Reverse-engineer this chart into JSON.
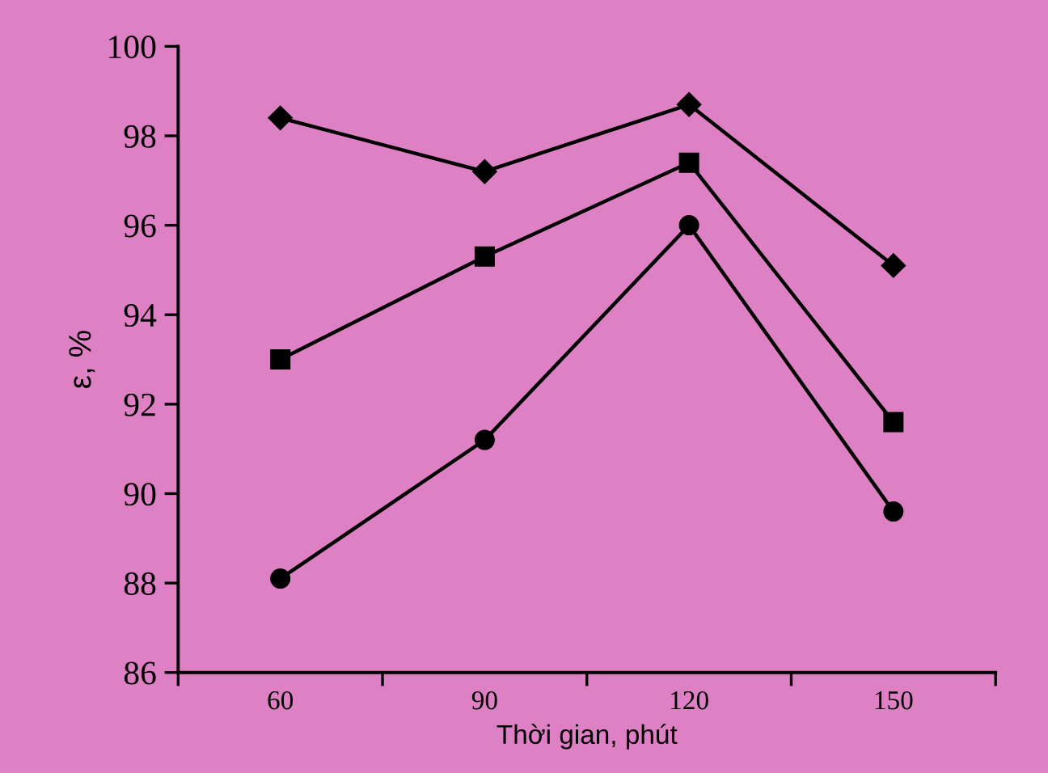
{
  "chart_data": {
    "type": "line",
    "xlabel": "Thời gian, phút",
    "ylabel": "ε, %",
    "categories": [
      "60",
      "90",
      "120",
      "150"
    ],
    "ylim": [
      86,
      100
    ],
    "yticks": [
      86,
      88,
      90,
      92,
      94,
      96,
      98,
      100
    ],
    "grid": false,
    "line_style": "solid",
    "series": [
      {
        "color": "#000000",
        "marker": "diamond",
        "values": [
          98.4,
          97.2,
          98.7,
          95.1
        ]
      },
      {
        "color": "#000000",
        "marker": "square",
        "values": [
          93.0,
          95.3,
          97.4,
          91.6
        ]
      },
      {
        "color": "#000000",
        "marker": "circle",
        "values": [
          88.1,
          91.2,
          96.0,
          89.6
        ]
      }
    ]
  }
}
